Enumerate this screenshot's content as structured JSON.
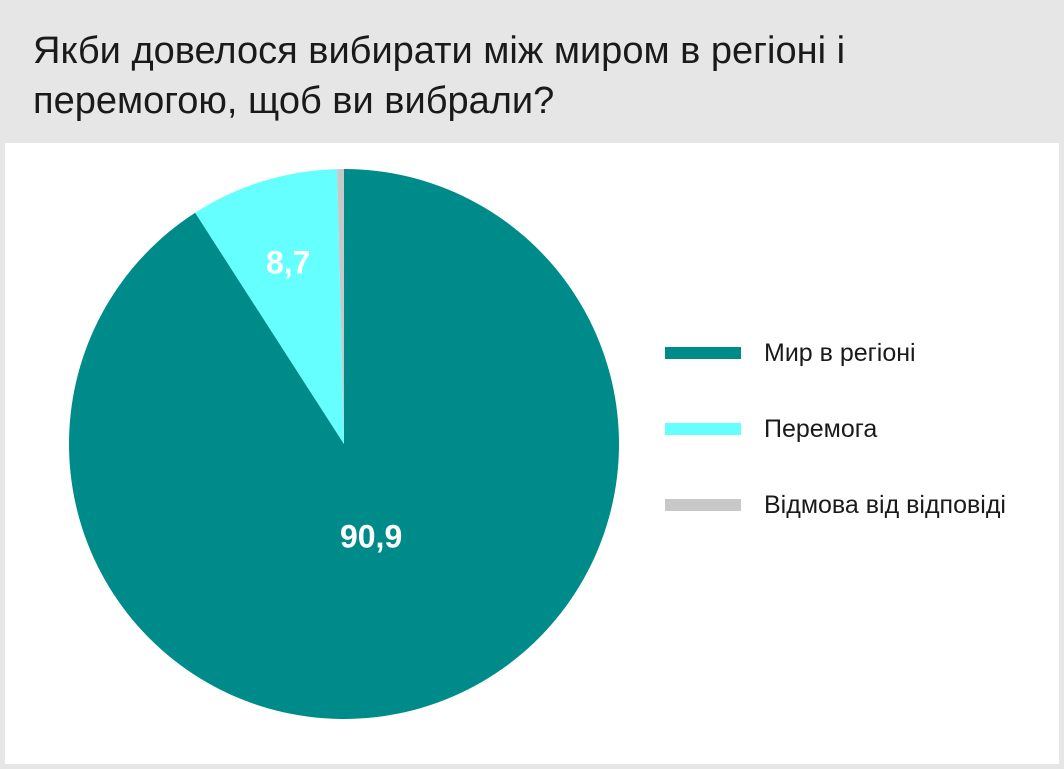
{
  "title": "Якби довелося вибирати між миром в регіоні і перемогою, щоб ви вибрали?",
  "chart_data": {
    "type": "pie",
    "title": "Якби довелося вибирати між миром в регіоні і перемогою, щоб ви вибрали?",
    "categories": [
      "Мир в регіоні",
      "Перемога",
      "Відмова від відповіді"
    ],
    "values": [
      90.9,
      8.7,
      0.4
    ],
    "value_labels": [
      "90,9",
      "8,7",
      ""
    ],
    "colors": [
      "#008b8b",
      "#66ffff",
      "#c8c8c8"
    ],
    "label_color": "#ffffff",
    "legend_position": "right",
    "start_angle": "12 o'clock",
    "direction": "clockwise"
  }
}
